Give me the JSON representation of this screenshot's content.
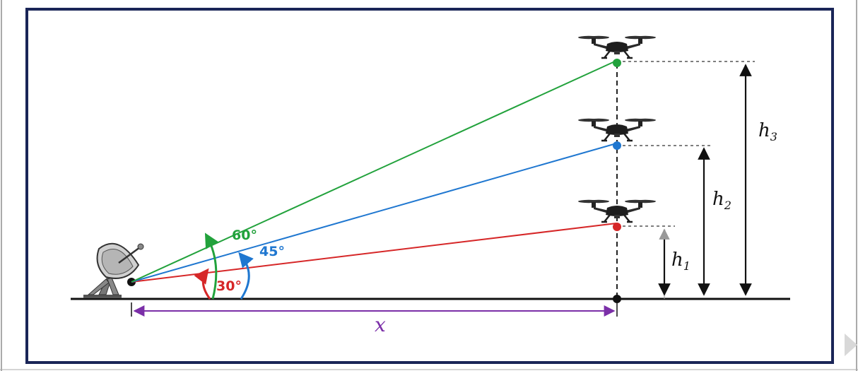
{
  "angles": [
    {
      "label": "30°",
      "color": "#d62728"
    },
    {
      "label": "45°",
      "color": "#1f77d0"
    },
    {
      "label": "60°",
      "color": "#22a23c"
    }
  ],
  "heights": [
    {
      "label": "h",
      "sub": "1",
      "color": "#d62728"
    },
    {
      "label": "h",
      "sub": "2",
      "color": "#1f77d0"
    },
    {
      "label": "h",
      "sub": "3",
      "color": "#22a23c"
    }
  ],
  "distance": {
    "label": "x",
    "color": "#7b2fa8"
  },
  "icons": [
    "satellite-dish-icon",
    "drone-icon",
    "next-arrow-icon"
  ],
  "colors": {
    "frame": "#1a2557",
    "ground": "#111111",
    "dashed": "#222222",
    "arrow_gray": "#d8d8d8"
  }
}
